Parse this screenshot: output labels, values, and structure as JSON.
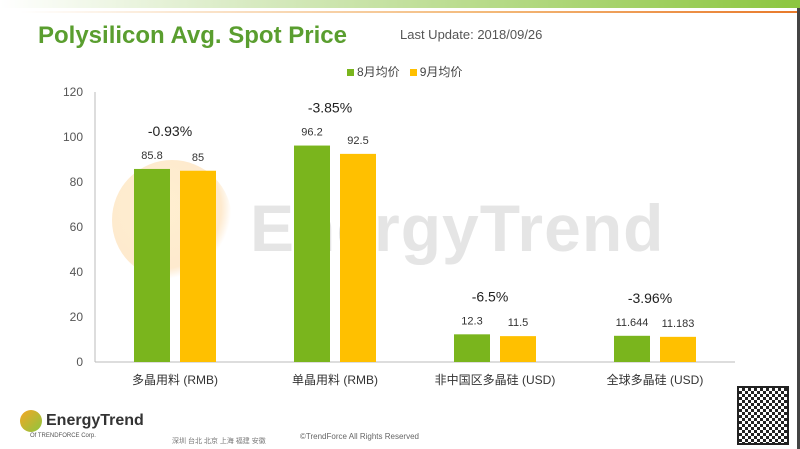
{
  "header": {
    "title": "Polysilicon Avg. Spot Price",
    "last_update": "Last Update: 2018/09/26"
  },
  "watermark": "EnergyTrend",
  "footer": {
    "logo": "EnergyTrend",
    "logo_sub": "Of TRENDFORCE Corp.",
    "cities": "深圳  台北  北京  上海  福建  安徽",
    "copyright": "©TrendForce All Rights Reserved"
  },
  "colors": {
    "aug": "#7ab51d",
    "sep": "#ffc000",
    "title": "#5a9e2f"
  },
  "chart_data": {
    "type": "bar",
    "categories": [
      "多晶用料 (RMB)",
      "单晶用料 (RMB)",
      "非中国区多晶硅 (USD)",
      "全球多晶硅 (USD)"
    ],
    "series": [
      {
        "name": "8月均价",
        "values": [
          85.8,
          96.2,
          12.3,
          11.644
        ]
      },
      {
        "name": "9月均价",
        "values": [
          85,
          92.5,
          11.5,
          11.183
        ]
      }
    ],
    "changes": [
      "-0.93%",
      "-3.85%",
      "-6.5%",
      "-3.96%"
    ],
    "yticks": [
      0,
      20,
      40,
      60,
      80,
      100,
      120
    ],
    "ylim": [
      0,
      120
    ],
    "grid": false,
    "legend": "top-center"
  }
}
